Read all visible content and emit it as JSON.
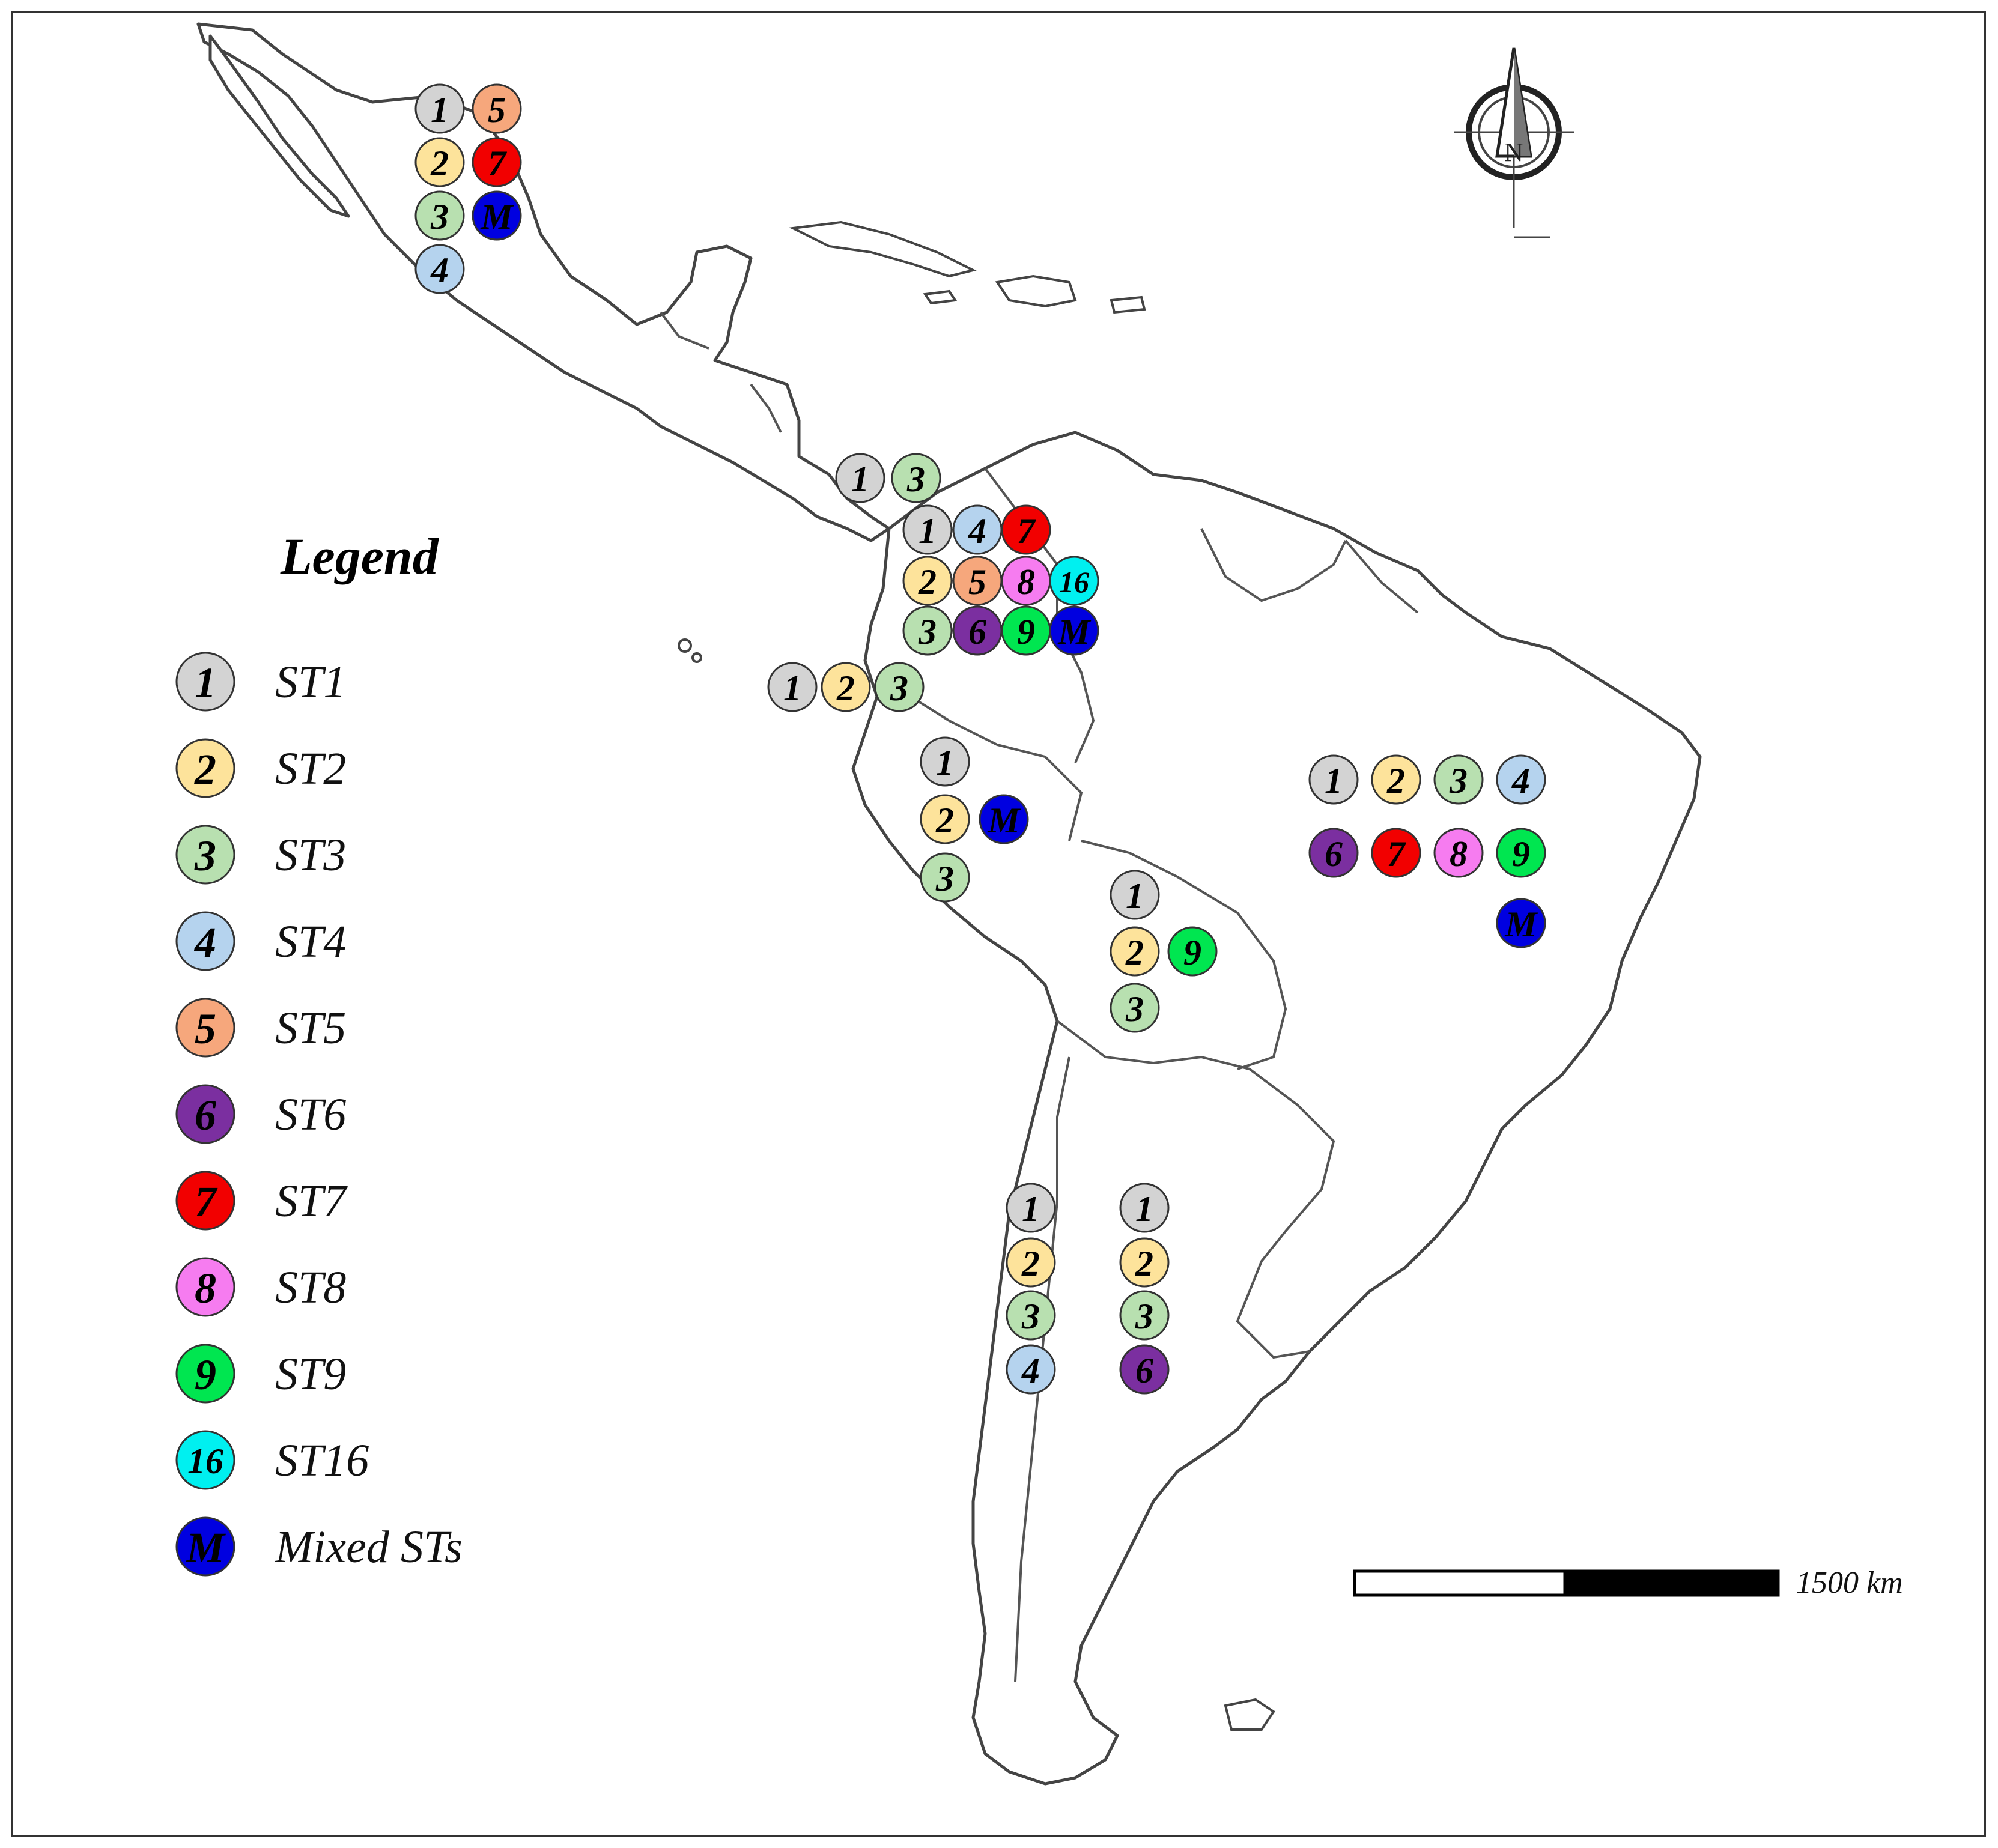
{
  "legend": {
    "title": "Legend",
    "items": [
      {
        "code": "1",
        "label": "ST1",
        "color": "#d3d3d3"
      },
      {
        "code": "2",
        "label": "ST2",
        "color": "#fde39b"
      },
      {
        "code": "3",
        "label": "ST3",
        "color": "#b8e0b0"
      },
      {
        "code": "4",
        "label": "ST4",
        "color": "#b5d3ee"
      },
      {
        "code": "5",
        "label": "ST5",
        "color": "#f6a77c"
      },
      {
        "code": "6",
        "label": "ST6",
        "color": "#7b2fa0"
      },
      {
        "code": "7",
        "label": "ST7",
        "color": "#f20000"
      },
      {
        "code": "8",
        "label": "ST8",
        "color": "#f67cf0"
      },
      {
        "code": "9",
        "label": "ST9",
        "color": "#00e650"
      },
      {
        "code": "16",
        "label": "ST16",
        "color": "#00f0f0"
      },
      {
        "code": "M",
        "label": "Mixed STs",
        "color": "#0000e0"
      }
    ]
  },
  "regions": [
    {
      "id": "mexico",
      "markers": [
        "1",
        "5",
        "2",
        "7",
        "3",
        "M",
        "4"
      ]
    },
    {
      "id": "central-america",
      "markers": [
        "1",
        "3"
      ]
    },
    {
      "id": "colombia",
      "markers": [
        "1",
        "4",
        "7",
        "2",
        "5",
        "8",
        "16",
        "3",
        "6",
        "9",
        "M"
      ]
    },
    {
      "id": "ecuador",
      "markers": [
        "1",
        "2",
        "3"
      ]
    },
    {
      "id": "peru",
      "markers": [
        "1",
        "2",
        "M",
        "3"
      ]
    },
    {
      "id": "bolivia",
      "markers": [
        "1",
        "2",
        "9",
        "3"
      ]
    },
    {
      "id": "brazil",
      "markers": [
        "1",
        "2",
        "3",
        "4",
        "6",
        "7",
        "8",
        "9",
        "M"
      ]
    },
    {
      "id": "chile",
      "markers": [
        "1",
        "2",
        "3",
        "4"
      ]
    },
    {
      "id": "argentina",
      "markers": [
        "1",
        "2",
        "3",
        "6"
      ]
    }
  ],
  "scale_bar": {
    "label": "1500 km"
  },
  "compass": {
    "label": "N"
  }
}
